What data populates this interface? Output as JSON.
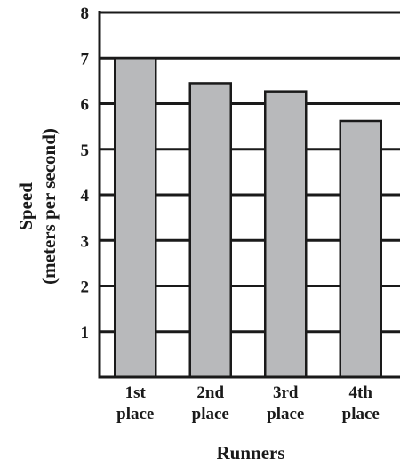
{
  "chart_data": {
    "type": "bar",
    "title": "",
    "xlabel": "Runners",
    "ylabel_lines": [
      "Speed",
      "(meters per second)"
    ],
    "categories": [
      [
        "1st",
        "place"
      ],
      [
        "2nd",
        "place"
      ],
      [
        "3rd",
        "place"
      ],
      [
        "4th",
        "place"
      ]
    ],
    "values": [
      7.0,
      6.45,
      6.27,
      5.62
    ],
    "ylim": [
      0,
      8
    ],
    "yticks": [
      "1",
      "2",
      "3",
      "4",
      "5",
      "6",
      "7",
      "8"
    ],
    "grid": "horizontal",
    "legend": "none",
    "colors": {
      "bar_fill": "#b8b9bb",
      "bar_stroke": "#1a1a1a",
      "axis": "#1a1a1a",
      "grid": "#1a1a1a"
    }
  }
}
